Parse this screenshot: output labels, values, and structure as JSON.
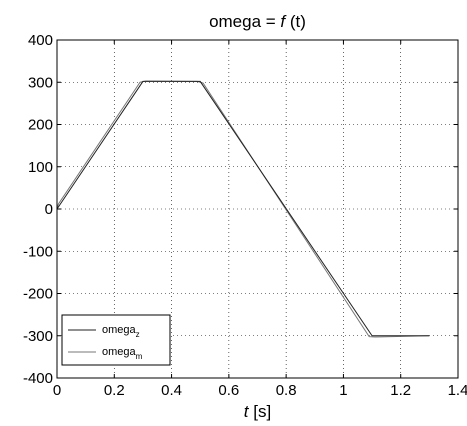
{
  "chart_data": {
    "type": "line",
    "title_prefix": "omega = ",
    "title_func": "f",
    "title_suffix": " (t)",
    "xlabel_var": "t",
    "xlabel_unit": " [s]",
    "xlim": [
      0,
      1.4
    ],
    "ylim": [
      -400,
      400
    ],
    "xticks": [
      0,
      0.2,
      0.4,
      0.6,
      0.8,
      1,
      1.2,
      1.4
    ],
    "xtick_labels": [
      "0",
      "0.2",
      "0.4",
      "0.6",
      "0.8",
      "1",
      "1.2",
      "1.4"
    ],
    "yticks": [
      -400,
      -300,
      -200,
      -100,
      0,
      100,
      200,
      300,
      400
    ],
    "ytick_labels": [
      "-400",
      "-300",
      "-200",
      "-100",
      "0",
      "100",
      "200",
      "300",
      "400"
    ],
    "grid": true,
    "legend_position": "bottom-left",
    "series": [
      {
        "name_main": "omega",
        "name_sub": "z",
        "color": "#222222",
        "x": [
          0,
          0.3,
          0.5,
          1.1,
          1.3
        ],
        "y": [
          0,
          302,
          302,
          -300,
          -300
        ]
      },
      {
        "name_main": "omega",
        "name_sub": "m",
        "color": "#777777",
        "x": [
          0,
          0.005,
          0.29,
          0.31,
          0.49,
          0.51,
          1.09,
          1.11,
          1.3
        ],
        "y": [
          0,
          12,
          300,
          303,
          302,
          298,
          -302,
          -303,
          -300
        ]
      }
    ]
  }
}
